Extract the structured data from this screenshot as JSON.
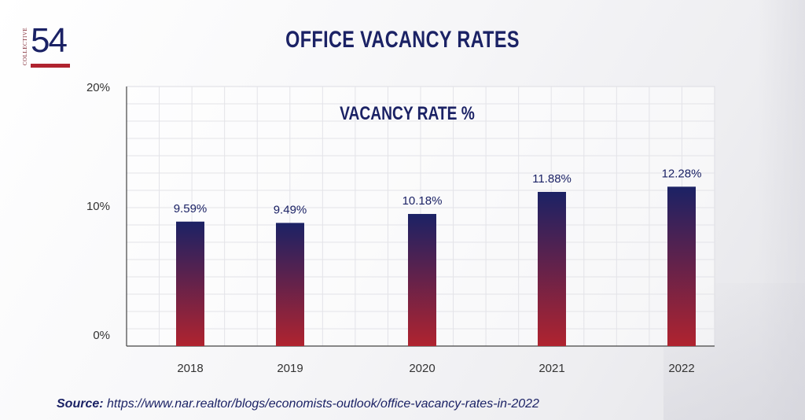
{
  "title": "OFFICE VACANCY RATES",
  "logo": {
    "number": "54",
    "vertical_text": "COLLECTIVE"
  },
  "source": {
    "label": "Source:",
    "url": "https://www.nar.realtor/blogs/economists-outlook/office-vacancy-rates-in-2022"
  },
  "colors": {
    "navy": "#1b2265",
    "red": "#b0232f"
  },
  "chart_data": {
    "type": "bar",
    "title": "VACANCY RATE %",
    "categories": [
      "2018",
      "2019",
      "2020",
      "2021",
      "2022"
    ],
    "values": [
      9.59,
      9.49,
      10.18,
      11.88,
      12.28
    ],
    "data_labels": [
      "9.59%",
      "9.49%",
      "10.18%",
      "11.88%",
      "12.28%"
    ],
    "y_ticks": [
      0,
      10,
      20
    ],
    "y_tick_labels": [
      "0%",
      "10%",
      "20%"
    ],
    "ylim": [
      0,
      20
    ],
    "grid": true,
    "bar_gradient": [
      "#1b2265",
      "#b0232f"
    ]
  }
}
